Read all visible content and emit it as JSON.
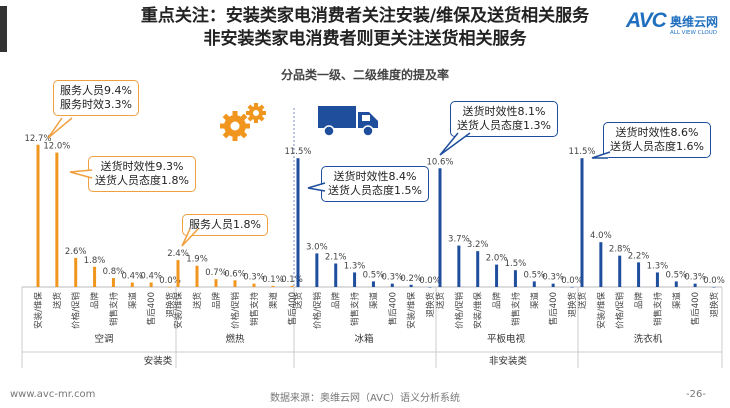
{
  "header": {
    "title_line1": "重点关注：安装类家电消费者关注安装/维保及送货相关服务",
    "title_line2": "非安装类家电消费者则更关注送货相关服务"
  },
  "logo": {
    "mark": "AVC",
    "cn": "奥维云网",
    "en": "ALL VIEW CLOUD"
  },
  "footer": {
    "website": "www.avc-mr.com",
    "source": "数据来源：奥维云网（AVC）语义分析系统",
    "page": "-26-"
  },
  "chart_data": {
    "type": "bar",
    "title": "分品类一级、二级维度的提及率",
    "colors": {
      "install": "#F0961E",
      "noninstall": "#1F4E9C"
    },
    "groups": [
      {
        "name": "空调",
        "section": "安装类",
        "categories": [
          "安装/维保",
          "送货",
          "价格/促销",
          "品牌",
          "销售支持",
          "渠道",
          "售后400",
          "退换货"
        ],
        "values": [
          12.7,
          12.0,
          2.6,
          1.8,
          0.8,
          0.4,
          0.4,
          0.0
        ],
        "labels": [
          "12.7%",
          "12.0%",
          "2.6%",
          "1.8%",
          "0.8%",
          "0.4%",
          "0.4%",
          "0.0%"
        ]
      },
      {
        "name": "燃热",
        "section": "安装类",
        "categories": [
          "安装/维保",
          "送货",
          "品牌",
          "价格/促销",
          "销售支持",
          "渠道",
          "售后400"
        ],
        "values": [
          2.4,
          1.9,
          0.7,
          0.6,
          0.3,
          0.1,
          0.1
        ],
        "labels": [
          "2.4%",
          "1.9%",
          "0.7%",
          "0.6%",
          "0.3%",
          "0.1%",
          "0.1%"
        ]
      },
      {
        "name": "冰箱",
        "section": "非安装类",
        "categories": [
          "送货",
          "价格/促销",
          "品牌",
          "销售支持",
          "渠道",
          "售后400",
          "安装/维保",
          "退换货"
        ],
        "values": [
          11.5,
          3.0,
          2.1,
          1.3,
          0.5,
          0.3,
          0.2,
          0.0
        ],
        "labels": [
          "11.5%",
          "3.0%",
          "2.1%",
          "1.3%",
          "0.5%",
          "0.3%",
          "0.2%",
          "0.0%"
        ]
      },
      {
        "name": "平板电视",
        "section": "非安装类",
        "categories": [
          "送货",
          "价格/促销",
          "安装/维保",
          "品牌",
          "销售支持",
          "渠道",
          "售后400",
          "退换货"
        ],
        "values": [
          10.6,
          3.7,
          3.2,
          2.0,
          1.5,
          0.5,
          0.3,
          0.0
        ],
        "labels": [
          "10.6%",
          "3.7%",
          "3.2%",
          "2.0%",
          "1.5%",
          "0.5%",
          "0.3%",
          "0.0%"
        ]
      },
      {
        "name": "洗衣机",
        "section": "非安装类",
        "categories": [
          "送货",
          "安装/维保",
          "价格/促销",
          "品牌",
          "销售支持",
          "渠道",
          "售后400",
          "退换货"
        ],
        "values": [
          11.5,
          4.0,
          2.8,
          2.2,
          1.3,
          0.5,
          0.3,
          0.0
        ],
        "labels": [
          "11.5%",
          "4.0%",
          "2.8%",
          "2.2%",
          "1.3%",
          "0.5%",
          "0.3%",
          "0.0%"
        ]
      }
    ],
    "sections": [
      "安装类",
      "非安装类"
    ],
    "callouts": [
      {
        "group": "空调",
        "lines": [
          "服务人员9.4%",
          "服务时效3.3%"
        ]
      },
      {
        "group": "空调",
        "lines": [
          "送货时效性9.3%",
          "送货人员态度1.8%"
        ]
      },
      {
        "group": "燃热",
        "lines": [
          "服务人员1.8%"
        ]
      },
      {
        "group": "冰箱",
        "lines": [
          "送货时效性8.4%",
          "送货人员态度1.5%"
        ]
      },
      {
        "group": "平板电视",
        "lines": [
          "送货时效性8.1%",
          "送货人员态度1.3%"
        ]
      },
      {
        "group": "洗衣机",
        "lines": [
          "送货时效性8.6%",
          "送货人员态度1.6%"
        ]
      }
    ]
  }
}
